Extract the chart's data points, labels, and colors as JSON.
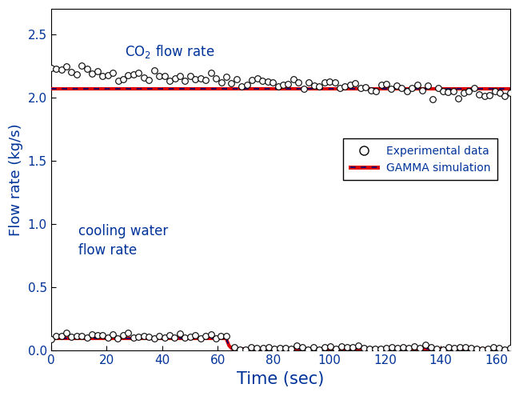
{
  "title": "",
  "xlabel": "Time (sec)",
  "ylabel": "Flow rate (kg/s)",
  "xlim": [
    0,
    165
  ],
  "ylim": [
    0,
    2.7
  ],
  "yticks": [
    0,
    0.5,
    1.0,
    1.5,
    2.0,
    2.5
  ],
  "xticks": [
    0,
    20,
    40,
    60,
    80,
    100,
    120,
    140,
    160
  ],
  "co2_label": "CO$_2$ flow rate",
  "water_label": "cooling water\nflow rate",
  "legend_exp": "Experimental data",
  "legend_gamma": "GAMMA simulation",
  "co2_sim_value": 2.07,
  "water_sim_value_before": 0.095,
  "water_sim_value_after": 0.015,
  "water_sim_transition": 63,
  "text_color": "#003399",
  "sim_color": "#dd0000",
  "sim_dash_color": "#000080",
  "exp_color": "#000000",
  "background_color": "#ffffff",
  "xlabel_fontsize": 15,
  "ylabel_fontsize": 13,
  "tick_labelsize": 11,
  "annotation_fontsize": 12,
  "legend_fontsize": 10
}
